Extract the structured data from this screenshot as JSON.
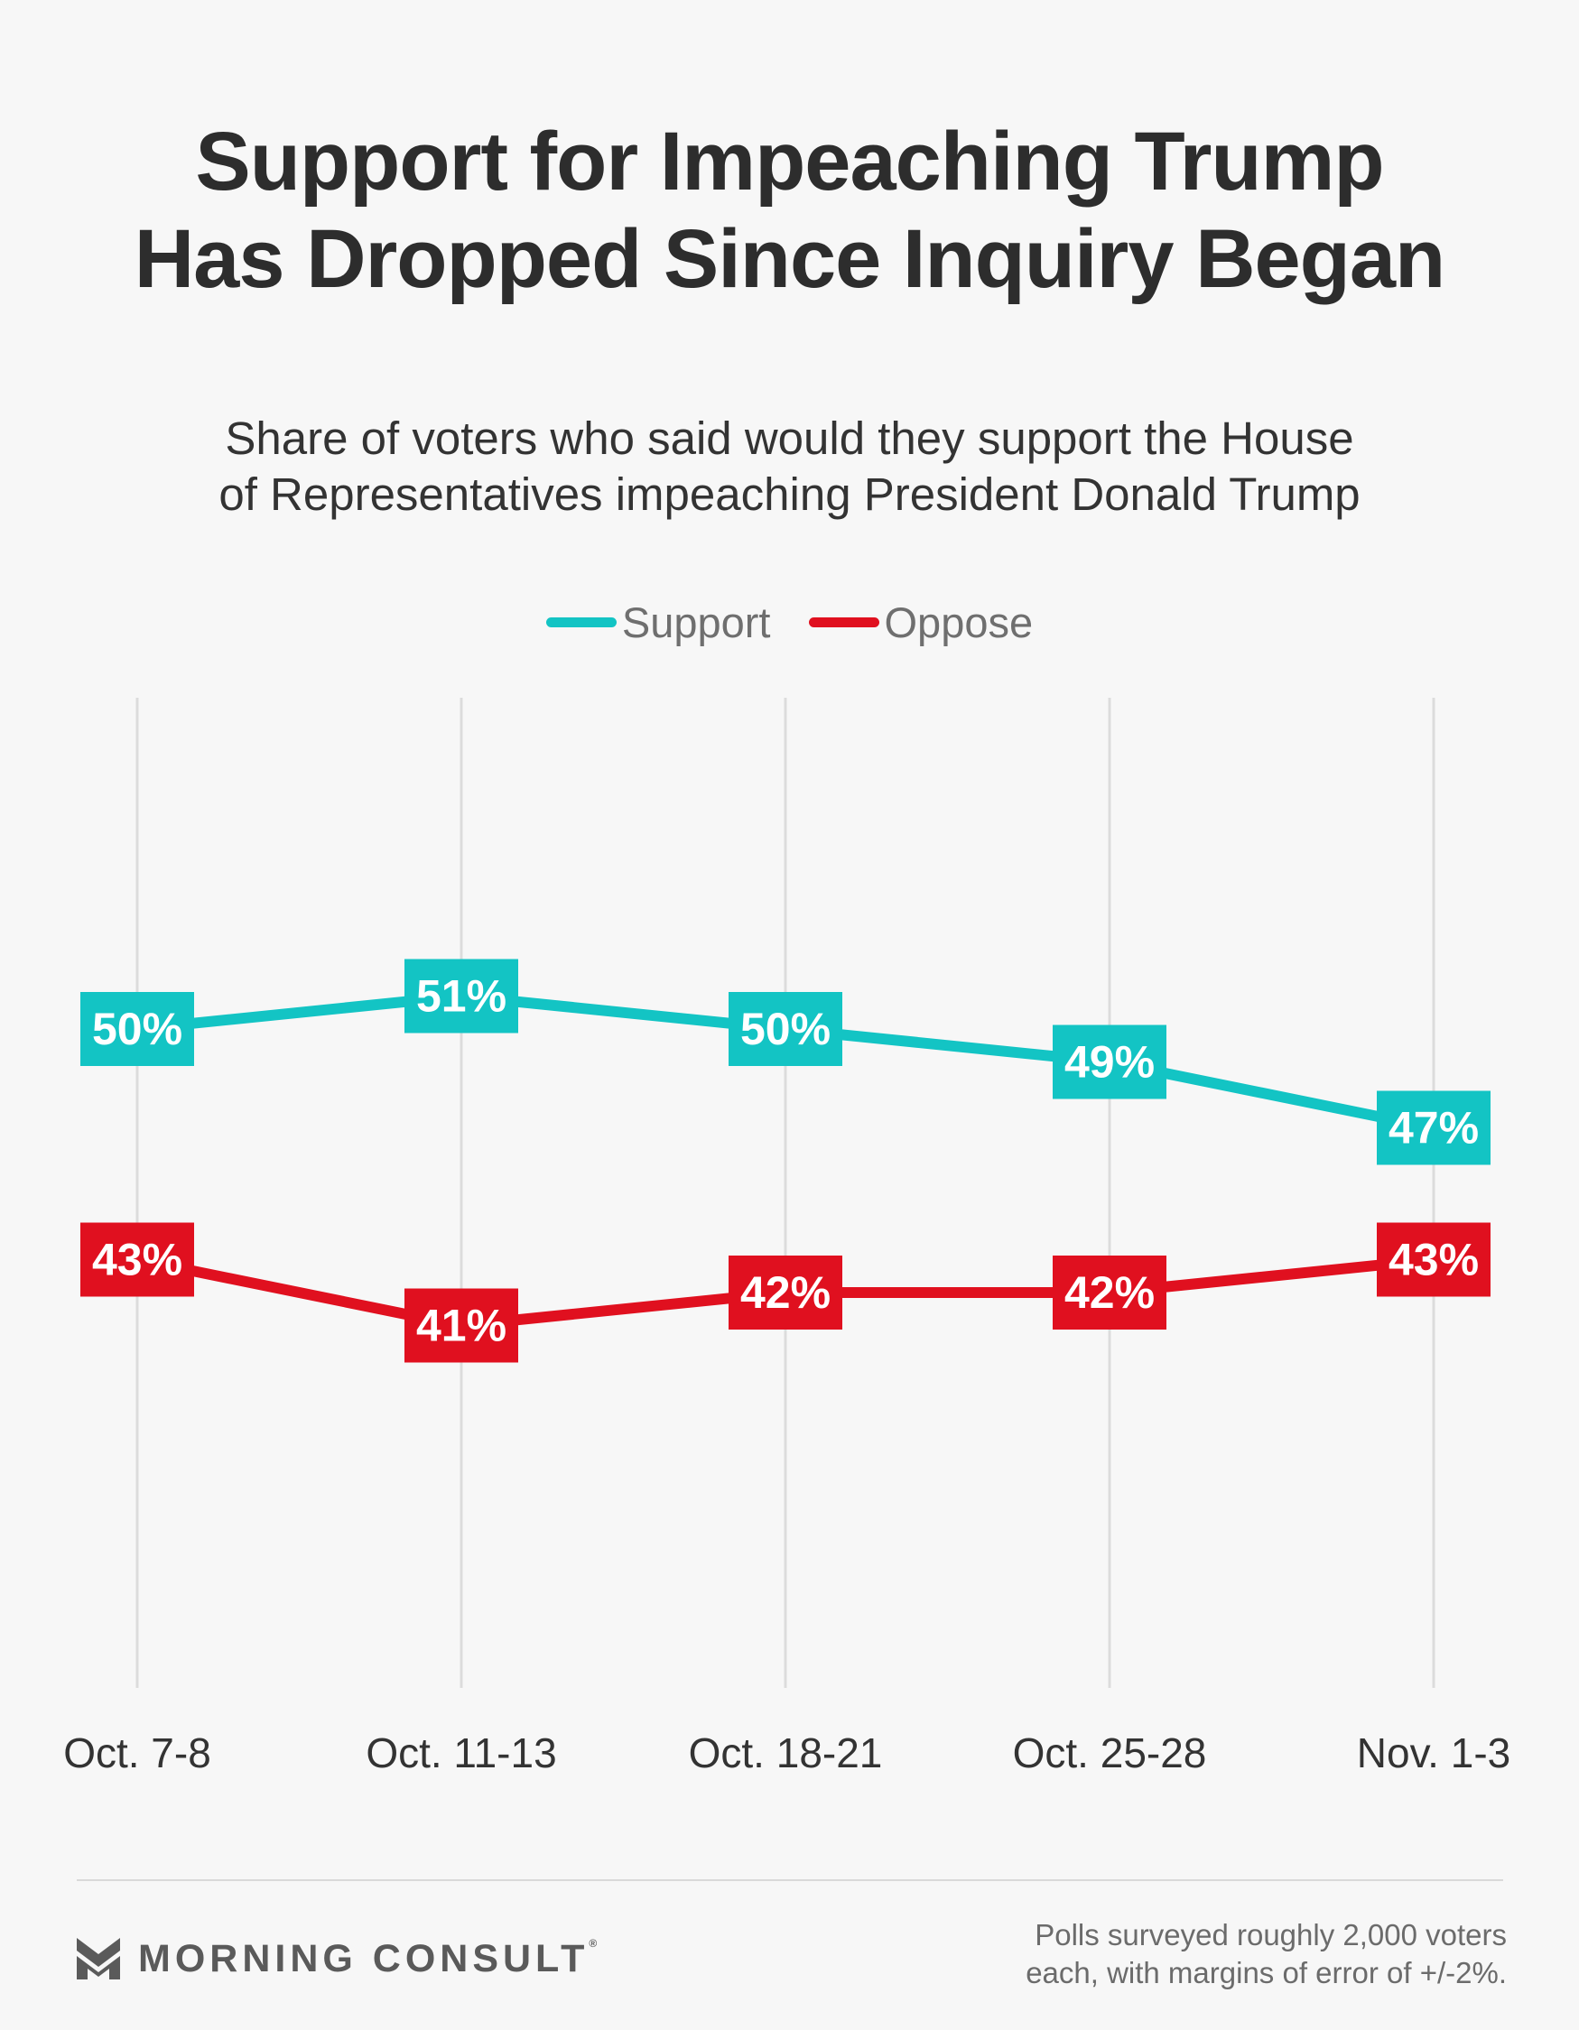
{
  "header": {
    "title_lines": [
      "Support for Impeaching Trump",
      "Has Dropped Since Inquiry Began"
    ],
    "subtitle_lines": [
      "Share of voters who said would they support the House",
      "of Representatives impeaching President Donald Trump"
    ]
  },
  "chart_data": {
    "type": "line",
    "title": "Support for Impeaching Trump Has Dropped Since Inquiry Began",
    "subtitle": "Share of voters who said would they support the House of Representatives impeaching President Donald Trump",
    "categories": [
      "Oct. 7-8",
      "Oct. 11-13",
      "Oct. 18-21",
      "Oct. 25-28",
      "Nov. 1-3"
    ],
    "series": [
      {
        "name": "Support",
        "color": "#13c4c4",
        "values": [
          50,
          51,
          50,
          49,
          47
        ],
        "labels": [
          "50%",
          "51%",
          "50%",
          "49%",
          "47%"
        ]
      },
      {
        "name": "Oppose",
        "color": "#e0101f",
        "values": [
          43,
          41,
          42,
          42,
          43
        ],
        "labels": [
          "43%",
          "41%",
          "42%",
          "42%",
          "43%"
        ]
      }
    ],
    "ylim": [
      20,
      60
    ],
    "xlabel": "",
    "ylabel": "",
    "grid": "vertical",
    "legend_position": "top-center",
    "colors": {
      "gridline": "#dcdcdc",
      "label_text": "#ffffff"
    }
  },
  "footer": {
    "brand": "MORNING CONSULT",
    "brand_mark": "®",
    "note_lines": [
      "Polls surveyed roughly 2,000 voters",
      "each, with margins of error of +/-2%."
    ],
    "logo_icon": "morning-consult-m-icon"
  }
}
